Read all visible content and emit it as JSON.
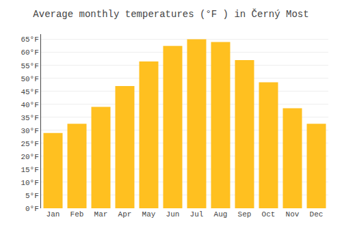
{
  "chart_data": {
    "type": "bar",
    "title": "Average monthly temperatures (°F ) in Černý Most",
    "categories": [
      "Jan",
      "Feb",
      "Mar",
      "Apr",
      "May",
      "Jun",
      "Jul",
      "Aug",
      "Sep",
      "Oct",
      "Nov",
      "Dec"
    ],
    "values": [
      29,
      32.5,
      39,
      47,
      56.5,
      62.5,
      65,
      64,
      57,
      48.5,
      38.5,
      32.5
    ],
    "color": "#FFC020",
    "ylim": [
      0,
      67
    ],
    "yticks": [
      {
        "value": 0,
        "label": "0°F"
      },
      {
        "value": 5,
        "label": "5°F"
      },
      {
        "value": 10,
        "label": "10°F"
      },
      {
        "value": 15,
        "label": "15°F"
      },
      {
        "value": 20,
        "label": "20°F"
      },
      {
        "value": 25,
        "label": "25°F"
      },
      {
        "value": 30,
        "label": "30°F"
      },
      {
        "value": 35,
        "label": "35°F"
      },
      {
        "value": 40,
        "label": "40°F"
      },
      {
        "value": 45,
        "label": "45°F"
      },
      {
        "value": 50,
        "label": "50°F"
      },
      {
        "value": 55,
        "label": "55°F"
      },
      {
        "value": 60,
        "label": "60°F"
      },
      {
        "value": 65,
        "label": "65°F"
      }
    ],
    "grid": true
  }
}
